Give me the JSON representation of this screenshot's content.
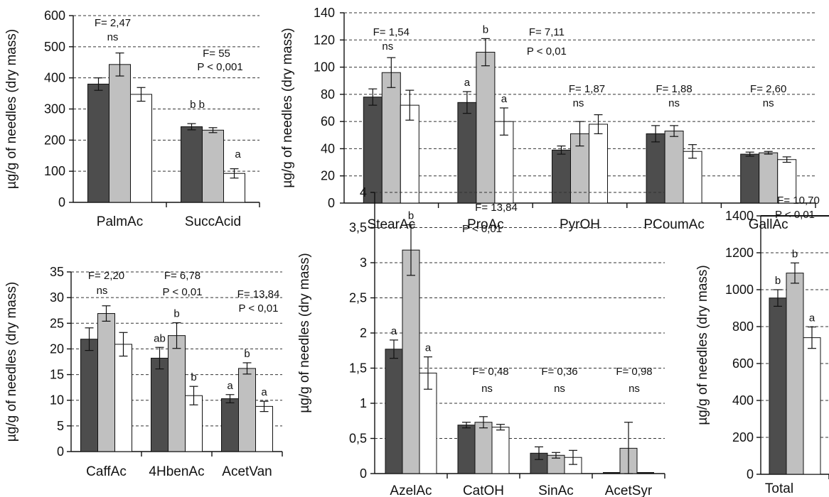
{
  "colors": {
    "series": [
      "#4d4d4d",
      "#c0c0c0",
      "#ffffff"
    ],
    "outline": "#111111"
  },
  "chart_data": [
    {
      "id": "p1",
      "type": "bar",
      "ylabel": "µg/g of needles (dry mass)",
      "ylim": [
        0,
        600
      ],
      "yticks": [
        "0",
        "100",
        "200",
        "300",
        "400",
        "500",
        "600"
      ],
      "tick_values": [
        0,
        100,
        200,
        300,
        400,
        500,
        600
      ],
      "grid": true,
      "categories": [
        "PalmAc",
        "SuccAcid"
      ],
      "series": [
        {
          "values": [
            380,
            243
          ],
          "errors": [
            20,
            10
          ]
        },
        {
          "values": [
            443,
            232
          ],
          "errors": [
            37,
            8
          ]
        },
        {
          "values": [
            347,
            93
          ],
          "errors": [
            22,
            15
          ]
        }
      ],
      "letters": [
        [
          "",
          ""
        ],
        [
          "",
          ""
        ],
        [
          "",
          ""
        ]
      ],
      "annotations": [
        [
          "F= 2,47",
          "ns"
        ],
        [
          "F= 55",
          "P < 0,001",
          "b  b",
          "a"
        ]
      ]
    },
    {
      "id": "p2",
      "type": "bar",
      "ylabel": "µg/g of needles (dry mass)",
      "ylim": [
        0,
        140
      ],
      "yticks": [
        "0",
        "20",
        "40",
        "60",
        "80",
        "100",
        "120",
        "140"
      ],
      "tick_values": [
        0,
        20,
        40,
        60,
        80,
        100,
        120,
        140
      ],
      "grid": true,
      "categories": [
        "StearAc",
        "ProAc",
        "PyrOH",
        "PCoumAc",
        "GallAc"
      ],
      "series": [
        {
          "values": [
            78,
            74,
            39,
            51,
            36
          ],
          "errors": [
            6,
            8,
            3,
            6,
            1.5
          ]
        },
        {
          "values": [
            96,
            111,
            51,
            53,
            37
          ],
          "errors": [
            11,
            10,
            9,
            4,
            1
          ]
        },
        {
          "values": [
            72,
            60,
            58,
            38,
            32
          ],
          "errors": [
            11,
            10,
            7,
            5,
            2
          ]
        }
      ],
      "letters": [
        [
          "",
          "a",
          "",
          "",
          ""
        ],
        [
          "",
          "b",
          "",
          "",
          ""
        ],
        [
          "",
          "a",
          "",
          "",
          ""
        ]
      ],
      "annotations": [
        [
          "F= 1,54",
          "ns"
        ],
        [
          "F= 7,11",
          "P < 0,01"
        ],
        [
          "F= 1,87",
          "ns"
        ],
        [
          "F= 1,88",
          "ns"
        ],
        [
          "F= 2,60",
          "ns"
        ]
      ]
    },
    {
      "id": "p3",
      "type": "bar",
      "ylabel": "µg/g of needles (dry mass)",
      "ylim": [
        0,
        35
      ],
      "yticks": [
        "0",
        "5",
        "10",
        "15",
        "20",
        "25",
        "30",
        "35"
      ],
      "tick_values": [
        0,
        5,
        10,
        15,
        20,
        25,
        30,
        35
      ],
      "grid": true,
      "categories": [
        "CaffAc",
        "4HbenAc",
        "AcetVan"
      ],
      "series": [
        {
          "values": [
            21.9,
            18.2,
            10.3
          ],
          "errors": [
            2.2,
            2.1,
            0.8
          ]
        },
        {
          "values": [
            26.9,
            22.6,
            16.2
          ],
          "errors": [
            1.5,
            2.5,
            1.1
          ]
        },
        {
          "values": [
            20.9,
            10.9,
            8.8
          ],
          "errors": [
            2.3,
            1.8,
            1.0
          ]
        }
      ],
      "letters": [
        [
          "",
          "ab",
          "a"
        ],
        [
          "",
          "b",
          "b"
        ],
        [
          "",
          "b",
          "a"
        ]
      ],
      "annotations": [
        [
          "F= 2,20",
          "ns"
        ],
        [
          "F= 6,78",
          "P < 0,01"
        ],
        [
          "F= 13,84",
          "P < 0,01"
        ]
      ]
    },
    {
      "id": "p4",
      "type": "bar",
      "ylabel": "µg/g of needles (dry mass)",
      "ylim": [
        0,
        4
      ],
      "yticks": [
        "0",
        "0,5",
        "1",
        "1,5",
        "2",
        "2,5",
        "3",
        "3,5",
        "4"
      ],
      "tick_values": [
        0,
        0.5,
        1,
        1.5,
        2,
        2.5,
        3,
        3.5,
        4
      ],
      "grid": true,
      "categories": [
        "AzelAc",
        "CatOH",
        "SinAc",
        "AcetSyr"
      ],
      "series": [
        {
          "values": [
            1.77,
            0.69,
            0.29,
            0
          ],
          "errors": [
            0.13,
            0.04,
            0.09,
            0
          ]
        },
        {
          "values": [
            3.18,
            0.73,
            0.26,
            0.36
          ],
          "errors": [
            0.36,
            0.08,
            0.04,
            0.37
          ]
        },
        {
          "values": [
            1.43,
            0.66,
            0.23,
            0
          ],
          "errors": [
            0.23,
            0.04,
            0.1,
            0
          ]
        }
      ],
      "letters": [
        [
          "a",
          "",
          "",
          ""
        ],
        [
          "b",
          "",
          "",
          ""
        ],
        [
          "a",
          "",
          "",
          ""
        ]
      ],
      "annotations": [
        [
          "F= 13,84",
          "P < 0,01"
        ],
        [
          "F= 0,48",
          "ns"
        ],
        [
          "F= 0,36",
          "ns"
        ],
        [
          "F= 0,98",
          "ns"
        ]
      ]
    },
    {
      "id": "p5",
      "type": "bar",
      "ylabel": "µg/g of needles (dry mass)",
      "ylim": [
        0,
        1400
      ],
      "yticks": [
        "0",
        "200",
        "400",
        "600",
        "800",
        "1000",
        "1200",
        "1400"
      ],
      "tick_values": [
        0,
        200,
        400,
        600,
        800,
        1000,
        1200,
        1400
      ],
      "grid": true,
      "categories": [
        "Total content"
      ],
      "series": [
        {
          "values": [
            955
          ],
          "errors": [
            45
          ]
        },
        {
          "values": [
            1090
          ],
          "errors": [
            55
          ]
        },
        {
          "values": [
            740
          ],
          "errors": [
            58
          ]
        }
      ],
      "letters": [
        [
          "b"
        ],
        [
          "b"
        ],
        [
          "a"
        ]
      ],
      "annotations": [
        [
          "F= 10,70",
          "P < 0,01"
        ]
      ]
    }
  ]
}
